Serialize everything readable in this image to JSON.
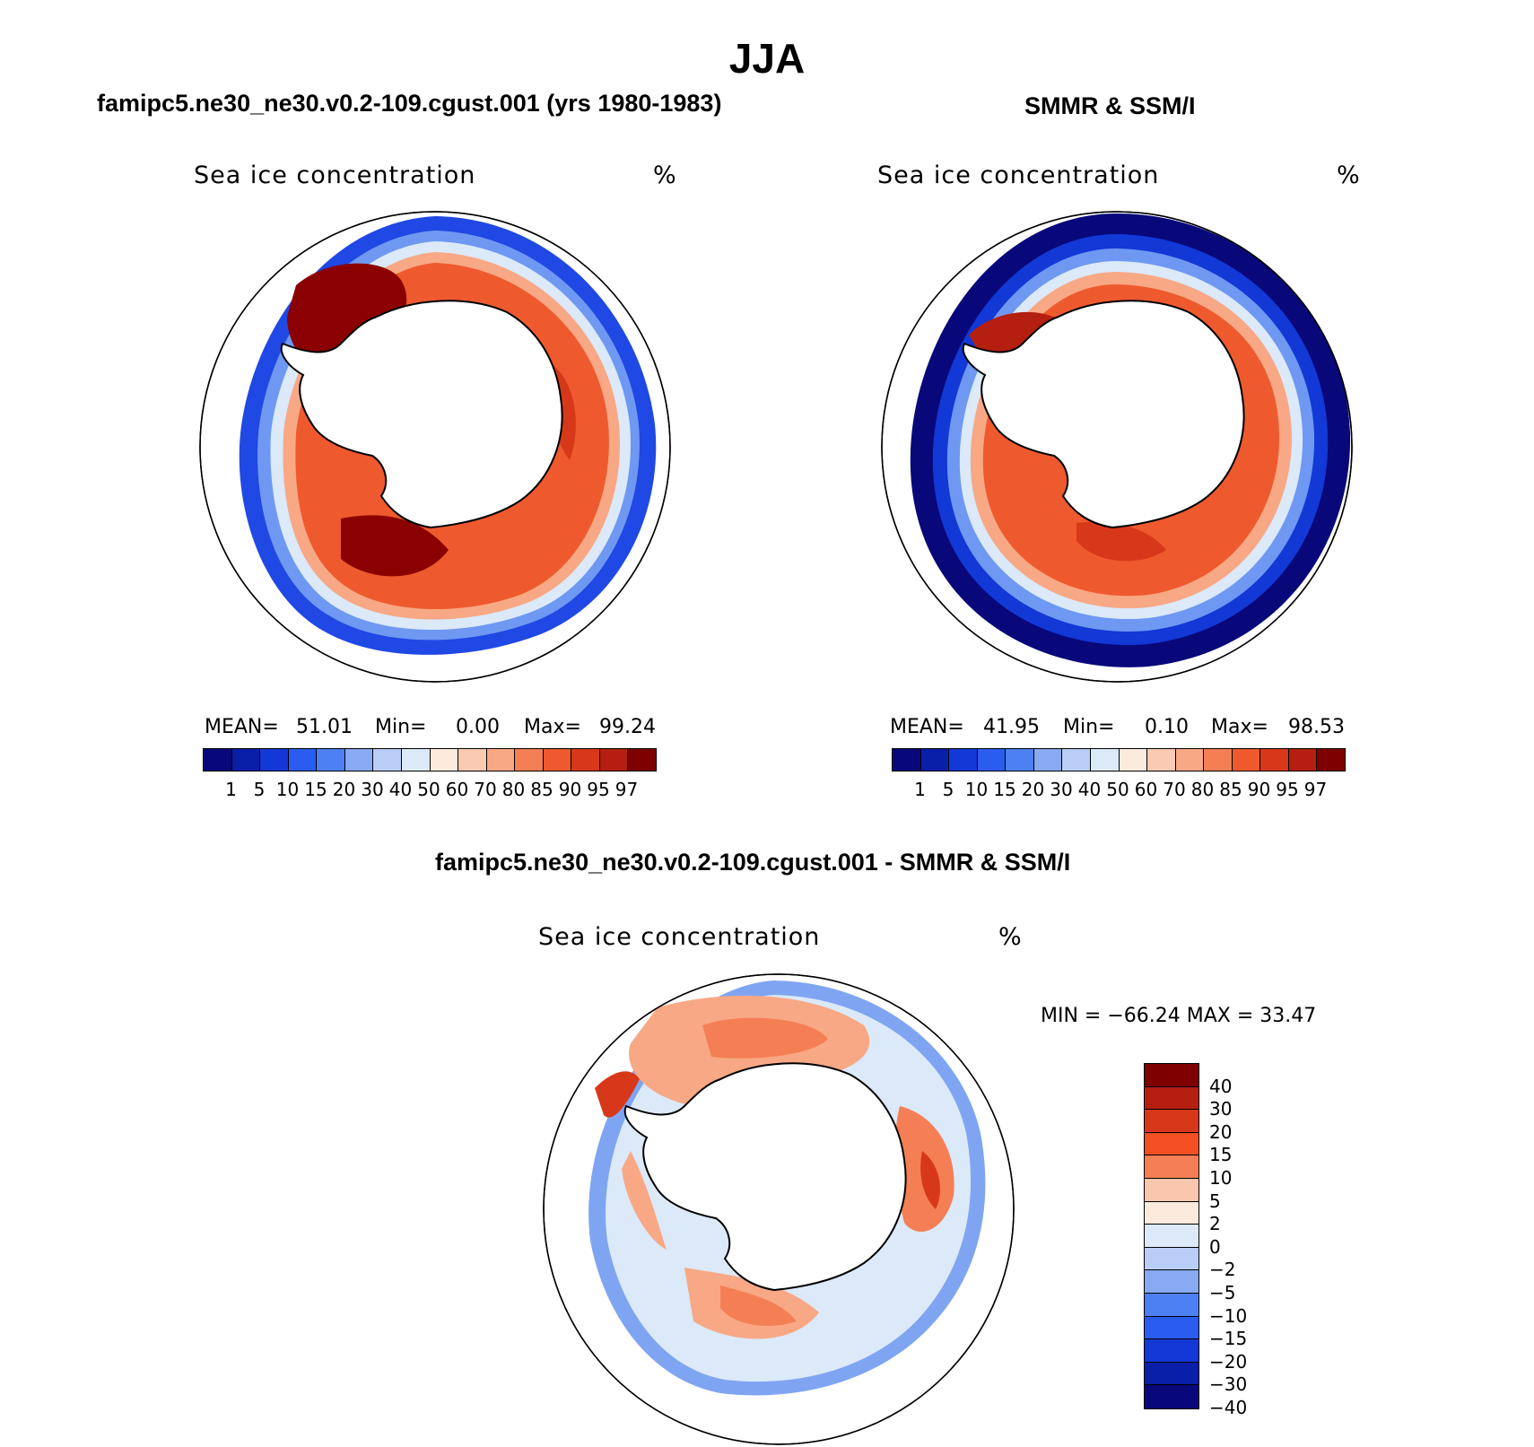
{
  "figure": {
    "season": "JJA",
    "panel1_title": "famipc5.ne30_ne30.v0.2-109.cgust.001 (yrs 1980-1983)",
    "panel2_title": "SMMR & SSM/I",
    "diff_title": "famipc5.ne30_ne30.v0.2-109.cgust.001 - SMMR & SSM/I"
  },
  "panels": [
    {
      "variable": "Sea ice concentration",
      "units": "%",
      "stats": {
        "mean_label": "MEAN=",
        "mean": "51.01",
        "min_label": "Min=",
        "min": "0.00",
        "max_label": "Max=",
        "max": "99.24"
      }
    },
    {
      "variable": "Sea ice concentration",
      "units": "%",
      "stats": {
        "mean_label": "MEAN=",
        "mean": "41.95",
        "min_label": "Min=",
        "min": "0.10",
        "max_label": "Max=",
        "max": "98.53"
      }
    }
  ],
  "diff_panel": {
    "variable": "Sea ice concentration",
    "units": "%",
    "range_text": "MIN = −66.24 MAX =   33.47"
  },
  "colorbar_main": {
    "colors": [
      "#08087a",
      "#0a1fa8",
      "#1238d6",
      "#2a5cf0",
      "#4d80f2",
      "#88aaf2",
      "#b9cef6",
      "#dbe9f9",
      "#fcebdd",
      "#fbcab2",
      "#f8a885",
      "#f47f55",
      "#ee5a2e",
      "#d8381a",
      "#b41f10",
      "#7f0000"
    ],
    "labels": [
      "1",
      "5",
      "10",
      "15",
      "20",
      "30",
      "40",
      "50",
      "60",
      "70",
      "80",
      "85",
      "90",
      "95",
      "97"
    ]
  },
  "colorbar_diff": {
    "colors": [
      "#7f0000",
      "#b41f10",
      "#d8381a",
      "#f25022",
      "#f47f55",
      "#f9c7ad",
      "#fcebdd",
      "#dbe9f9",
      "#b9cef6",
      "#88aaf2",
      "#4d80f2",
      "#2a5cf0",
      "#1238d6",
      "#0a1fa8",
      "#08087a"
    ],
    "labels": [
      "40",
      "30",
      "20",
      "15",
      "10",
      "5",
      "2",
      "0",
      "−2",
      "−5",
      "−10",
      "−15",
      "−20",
      "−30",
      "−40"
    ]
  }
}
